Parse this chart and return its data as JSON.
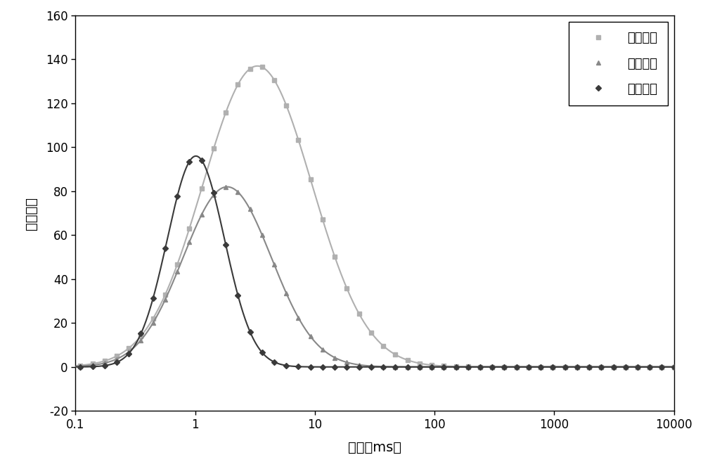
{
  "xlabel": "时间（ms）",
  "ylabel": "孔隙信号",
  "xlim": [
    0.1,
    10000
  ],
  "ylim": [
    -20,
    160
  ],
  "yticks": [
    -20,
    0,
    20,
    40,
    60,
    80,
    100,
    120,
    140,
    160
  ],
  "xticks": [
    0.1,
    1,
    10,
    100,
    1000,
    10000
  ],
  "xtick_labels": [
    "0.1",
    "1",
    "10",
    "100",
    "1000",
    "10000"
  ],
  "legend_labels": [
    "酸液体系",
    "混合酸液",
    "复合酸液"
  ],
  "series1_color": "#b0b0b0",
  "series2_color": "#888888",
  "series3_color": "#3a3a3a",
  "background_color": "#ffffff",
  "series1_peak_x": 1.1,
  "series1_peak_y": 137,
  "series1_sigma": 1.05,
  "series2_peak_x": 0.9,
  "series2_peak_y": 82,
  "series2_sigma": 0.85,
  "series3_peak_x": 0.75,
  "series3_peak_y": 96,
  "series3_sigma": 0.55,
  "figwidth": 10.0,
  "figheight": 6.74,
  "dpi": 100
}
